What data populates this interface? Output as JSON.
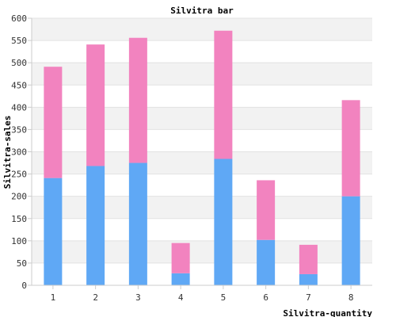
{
  "chart_data": {
    "type": "bar",
    "stacked": true,
    "title": "Silvitra bar",
    "xlabel": "Silvitra-quantity",
    "ylabel": "Silvitra-sales",
    "categories": [
      "1",
      "2",
      "3",
      "4",
      "5",
      "6",
      "7",
      "8"
    ],
    "series": [
      {
        "values": [
          241,
          268,
          275,
          27,
          284,
          102,
          25,
          200
        ],
        "color": "#5fa8f5"
      },
      {
        "values": [
          250,
          273,
          281,
          68,
          288,
          134,
          66,
          216
        ],
        "color": "#f283bf"
      }
    ],
    "ylim": [
      0,
      600
    ],
    "yticks": [
      0,
      50,
      100,
      150,
      200,
      250,
      300,
      350,
      400,
      450,
      500,
      550,
      600
    ],
    "grid": true,
    "band_colors": [
      "#ffffff",
      "#f2f2f2"
    ],
    "axis_color": "#cccccc"
  }
}
